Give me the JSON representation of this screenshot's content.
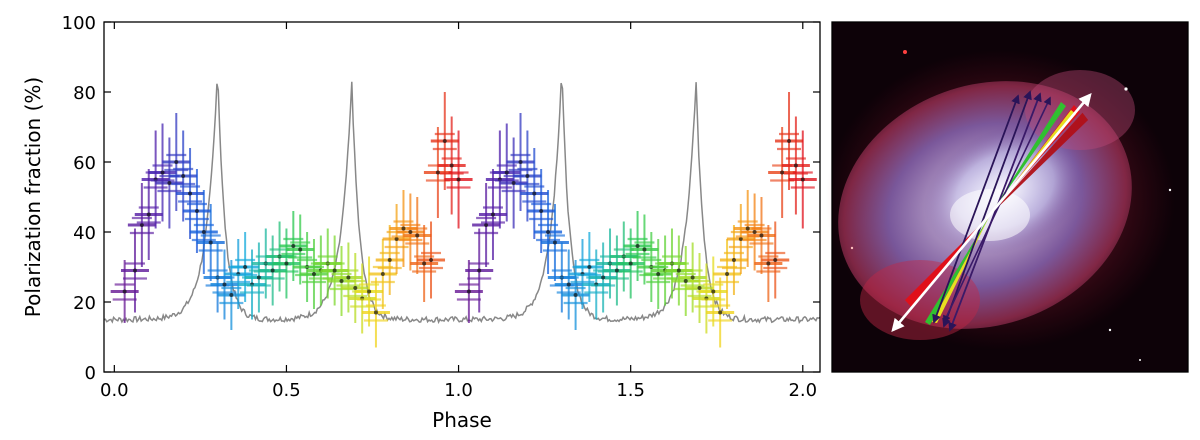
{
  "chart_data": {
    "type": "scatter",
    "xlabel": "Phase",
    "ylabel": "Polarization fraction (%)",
    "xlim": [
      -0.03,
      2.05
    ],
    "ylim": [
      0,
      100
    ],
    "x_ticks": [
      "0.0",
      "0.5",
      "1.0",
      "1.5",
      "2.0"
    ],
    "y_ticks": [
      "0",
      "20",
      "40",
      "60",
      "80",
      "100"
    ],
    "x_tick_values": [
      0,
      0.5,
      1.0,
      1.5,
      2.0
    ],
    "y_tick_values": [
      0,
      20,
      40,
      60,
      80,
      100
    ],
    "grid": false,
    "colormap": "rainbow (violet at phase 0 to red at phase 1)",
    "series": [
      {
        "style": "points with horizontal and vertical error bars, colored by phase",
        "phase": [
          0.03,
          0.06,
          0.08,
          0.1,
          0.12,
          0.14,
          0.16,
          0.18,
          0.2,
          0.22,
          0.24,
          0.26,
          0.28,
          0.3,
          0.32,
          0.34,
          0.36,
          0.38,
          0.4,
          0.42,
          0.44,
          0.46,
          0.48,
          0.5,
          0.52,
          0.54,
          0.56,
          0.58,
          0.6,
          0.62,
          0.64,
          0.66,
          0.68,
          0.7,
          0.72,
          0.74,
          0.76,
          0.78,
          0.8,
          0.82,
          0.84,
          0.86,
          0.88,
          0.9,
          0.92,
          0.94,
          0.96,
          0.98,
          1.0
        ],
        "value": [
          23,
          29,
          42,
          45,
          55,
          57,
          54,
          60,
          56,
          51,
          46,
          40,
          37,
          27,
          25,
          22,
          28,
          30,
          25,
          27,
          31,
          29,
          33,
          31,
          36,
          35,
          30,
          28,
          29,
          31,
          29,
          26,
          27,
          24,
          21,
          23,
          17,
          28,
          32,
          38,
          41,
          40,
          39,
          31,
          32,
          57,
          66,
          59,
          55
        ],
        "error": [
          9,
          12,
          12,
          13,
          14,
          14,
          13,
          14,
          13,
          13,
          12,
          12,
          11,
          10,
          10,
          10,
          10,
          10,
          10,
          10,
          10,
          10,
          10,
          10,
          10,
          10,
          10,
          10,
          10,
          10,
          10,
          10,
          10,
          10,
          10,
          10,
          10,
          10,
          10,
          10,
          11,
          11,
          11,
          11,
          11,
          13,
          14,
          14,
          14
        ]
      },
      {
        "style": "gray line (pulse profile, arbitrary scale)",
        "peaks": [
          {
            "phase": 0.3,
            "value": 87
          },
          {
            "phase": 0.69,
            "value": 83
          },
          {
            "phase": 1.3,
            "value": 87
          },
          {
            "phase": 1.69,
            "value": 83
          }
        ],
        "baseline": 15
      }
    ]
  },
  "inset": {
    "caption": "",
    "colors": {
      "white_arrow": "#ffffff",
      "arrows_violet": "#2a1458",
      "wedge_red": "#e0101a",
      "wedge_yellow": "#e8e020",
      "wedge_green": "#30c030"
    }
  }
}
